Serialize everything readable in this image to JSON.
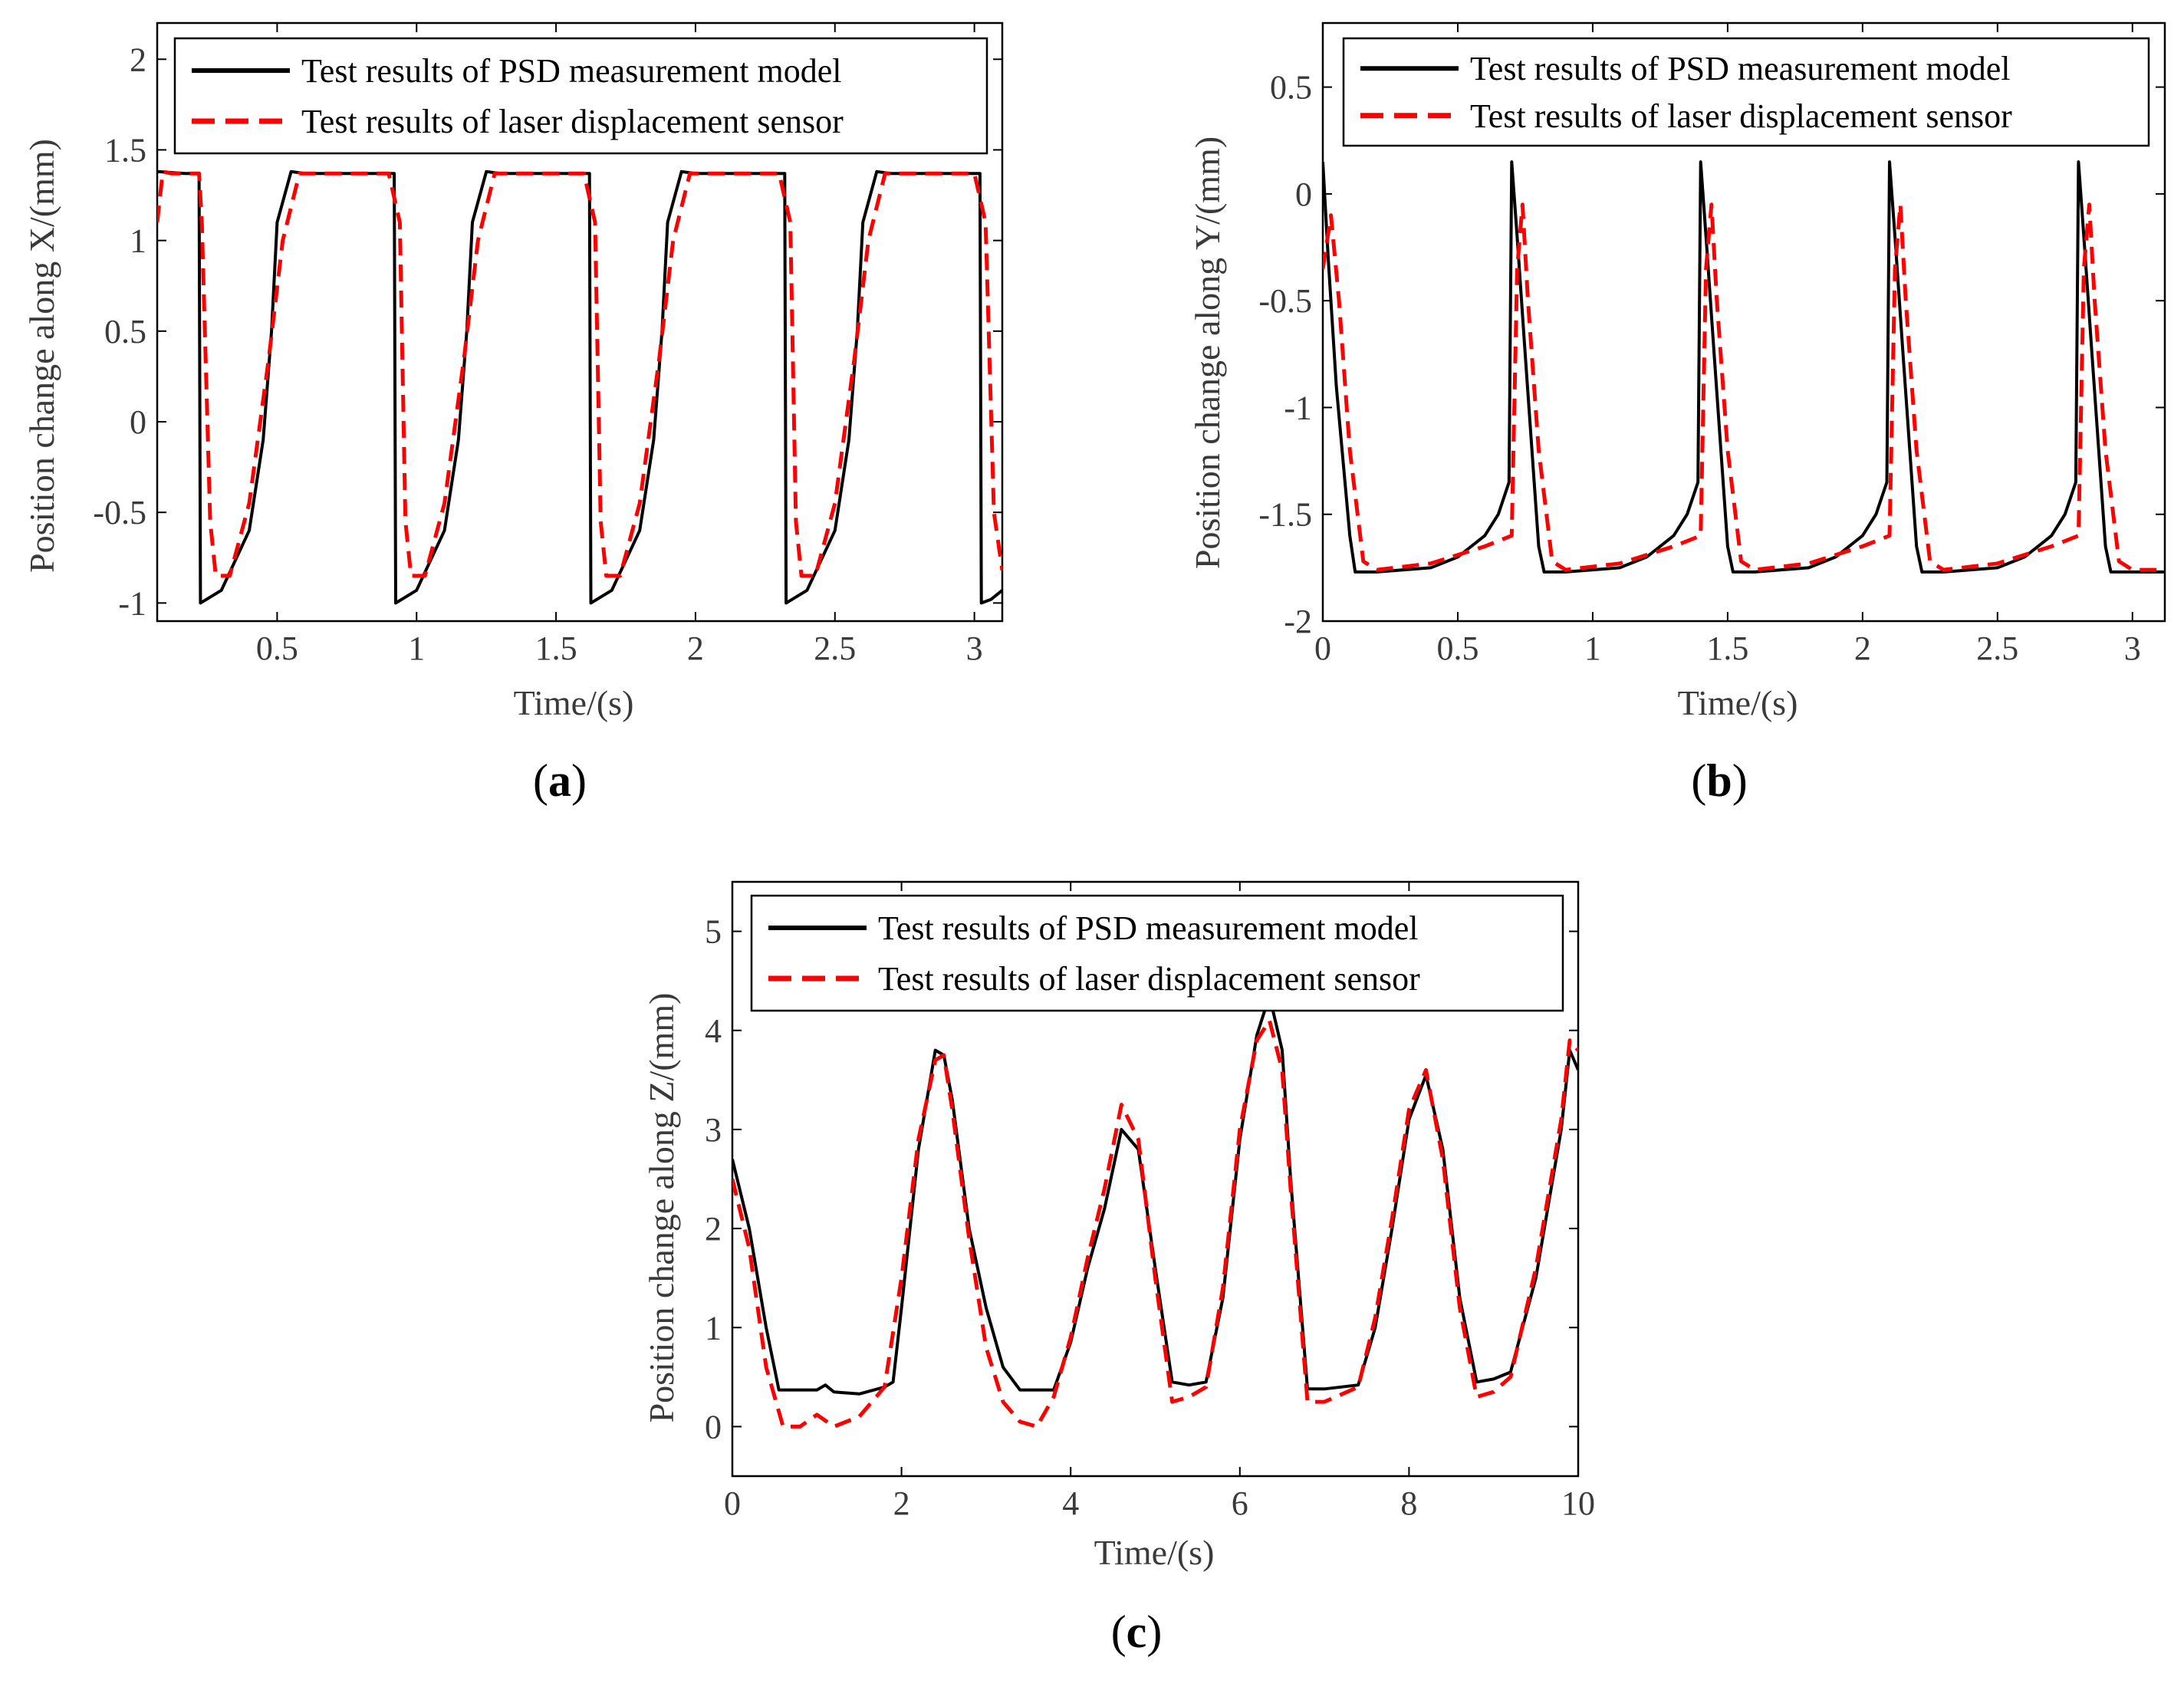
{
  "figure": {
    "captions": [
      "a",
      "b",
      "c"
    ]
  },
  "colors": {
    "psd": "#000000",
    "laser": "#ff0000",
    "axis": "#000000",
    "text": "#3a3a3a"
  },
  "chart_data": [
    {
      "id": "a",
      "type": "line",
      "caption": "a",
      "xlabel": "Time/(s)",
      "ylabel": "Position change along X/(mm)",
      "xlim": [
        0.07,
        3.1
      ],
      "ylim": [
        -1.1,
        2.2
      ],
      "xticks": [
        0.5,
        1,
        1.5,
        2,
        2.5,
        3
      ],
      "xtick_labels": [
        "0.5",
        "1",
        "1.5",
        "2",
        "2.5",
        "3"
      ],
      "yticks": [
        -1,
        -0.5,
        0,
        0.5,
        1,
        1.5,
        2
      ],
      "ytick_labels": [
        "-1",
        "-0.5",
        "0",
        "0.5",
        "1",
        "1.5",
        "2"
      ],
      "legend": [
        "Test results of PSD measurement model",
        "Test results of laser displacement sensor"
      ],
      "series": [
        {
          "name": "Test results of PSD measurement model",
          "x": [
            0.07,
            0.17,
            0.22,
            0.225,
            0.3,
            0.4,
            0.45,
            0.48,
            0.5,
            0.55,
            0.6,
            0.7,
            0.92,
            0.925,
            1.0,
            1.1,
            1.15,
            1.18,
            1.2,
            1.25,
            1.3,
            1.4,
            1.62,
            1.625,
            1.7,
            1.8,
            1.85,
            1.88,
            1.9,
            1.95,
            2.0,
            2.1,
            2.32,
            2.325,
            2.4,
            2.5,
            2.55,
            2.58,
            2.6,
            2.65,
            2.7,
            2.8,
            3.02,
            3.025,
            3.06,
            3.1
          ],
          "values": [
            1.38,
            1.37,
            1.37,
            -1.0,
            -0.93,
            -0.6,
            -0.1,
            0.5,
            1.1,
            1.38,
            1.37,
            1.37,
            1.37,
            -1.0,
            -0.93,
            -0.6,
            -0.1,
            0.5,
            1.1,
            1.38,
            1.37,
            1.37,
            1.37,
            -1.0,
            -0.93,
            -0.6,
            -0.1,
            0.5,
            1.1,
            1.38,
            1.37,
            1.37,
            1.37,
            -1.0,
            -0.93,
            -0.6,
            -0.1,
            0.5,
            1.1,
            1.38,
            1.37,
            1.37,
            1.37,
            -1.0,
            -0.98,
            -0.93
          ]
        },
        {
          "name": "Test results of laser displacement sensor",
          "x": [
            0.07,
            0.09,
            0.12,
            0.22,
            0.23,
            0.26,
            0.28,
            0.33,
            0.4,
            0.47,
            0.52,
            0.58,
            0.7,
            0.9,
            0.94,
            0.96,
            0.98,
            1.03,
            1.1,
            1.17,
            1.22,
            1.28,
            1.4,
            1.6,
            1.64,
            1.66,
            1.68,
            1.73,
            1.8,
            1.87,
            1.92,
            1.98,
            2.1,
            2.3,
            2.34,
            2.36,
            2.38,
            2.43,
            2.5,
            2.57,
            2.62,
            2.68,
            2.8,
            3.0,
            3.04,
            3.07,
            3.1
          ],
          "values": [
            1.1,
            1.38,
            1.37,
            1.37,
            1.1,
            -0.55,
            -0.85,
            -0.85,
            -0.45,
            0.35,
            1.0,
            1.37,
            1.37,
            1.37,
            1.1,
            -0.55,
            -0.85,
            -0.85,
            -0.45,
            0.35,
            1.0,
            1.37,
            1.37,
            1.37,
            1.1,
            -0.55,
            -0.85,
            -0.85,
            -0.45,
            0.35,
            1.0,
            1.37,
            1.37,
            1.37,
            1.1,
            -0.55,
            -0.85,
            -0.85,
            -0.45,
            0.35,
            1.0,
            1.37,
            1.37,
            1.37,
            1.1,
            -0.5,
            -0.82
          ]
        }
      ]
    },
    {
      "id": "b",
      "type": "line",
      "caption": "b",
      "xlabel": "Time/(s)",
      "ylabel": "Position change along Y/(mm)",
      "xlim": [
        0,
        3.12
      ],
      "ylim": [
        -2,
        0.8
      ],
      "xticks": [
        0,
        0.5,
        1,
        1.5,
        2,
        2.5,
        3
      ],
      "xtick_labels": [
        "0",
        "0.5",
        "1",
        "1.5",
        "2",
        "2.5",
        "3"
      ],
      "yticks": [
        -2,
        -1.5,
        -1,
        -0.5,
        0,
        0.5
      ],
      "ytick_labels": [
        "-2",
        "-1.5",
        "-1",
        "-0.5",
        "0",
        "0.5"
      ],
      "legend": [
        "Test results of PSD measurement model",
        "Test results of laser displacement sensor"
      ],
      "series": [
        {
          "name": "Test results of PSD measurement model",
          "x": [
            0,
            0.02,
            0.05,
            0.1,
            0.12,
            0.2,
            0.4,
            0.5,
            0.6,
            0.65,
            0.69,
            0.7,
            0.72,
            0.75,
            0.8,
            0.82,
            0.9,
            1.1,
            1.2,
            1.3,
            1.35,
            1.39,
            1.4,
            1.42,
            1.45,
            1.5,
            1.52,
            1.6,
            1.8,
            1.9,
            2.0,
            2.05,
            2.09,
            2.1,
            2.12,
            2.15,
            2.2,
            2.22,
            2.3,
            2.5,
            2.6,
            2.7,
            2.75,
            2.79,
            2.8,
            2.82,
            2.85,
            2.9,
            2.92,
            3.0,
            3.12
          ],
          "values": [
            0.15,
            -0.3,
            -0.9,
            -1.6,
            -1.77,
            -1.77,
            -1.75,
            -1.7,
            -1.6,
            -1.5,
            -1.35,
            0.15,
            -0.2,
            -0.75,
            -1.65,
            -1.77,
            -1.77,
            -1.75,
            -1.7,
            -1.6,
            -1.5,
            -1.35,
            0.15,
            -0.2,
            -0.75,
            -1.65,
            -1.77,
            -1.77,
            -1.75,
            -1.7,
            -1.6,
            -1.5,
            -1.35,
            0.15,
            -0.2,
            -0.75,
            -1.65,
            -1.77,
            -1.77,
            -1.75,
            -1.7,
            -1.6,
            -1.5,
            -1.35,
            0.15,
            -0.2,
            -0.75,
            -1.65,
            -1.77,
            -1.77,
            -1.77
          ]
        },
        {
          "name": "Test results of laser displacement sensor",
          "x": [
            0,
            0.03,
            0.06,
            0.1,
            0.15,
            0.2,
            0.4,
            0.6,
            0.7,
            0.72,
            0.74,
            0.76,
            0.8,
            0.85,
            0.9,
            1.1,
            1.3,
            1.4,
            1.42,
            1.44,
            1.46,
            1.5,
            1.55,
            1.6,
            1.8,
            2.0,
            2.1,
            2.12,
            2.14,
            2.16,
            2.2,
            2.25,
            2.3,
            2.5,
            2.7,
            2.8,
            2.82,
            2.84,
            2.86,
            2.9,
            2.95,
            3.0,
            3.12
          ],
          "values": [
            -0.35,
            -0.1,
            -0.5,
            -1.2,
            -1.72,
            -1.76,
            -1.73,
            -1.65,
            -1.6,
            -0.35,
            -0.05,
            -0.5,
            -1.2,
            -1.72,
            -1.76,
            -1.73,
            -1.65,
            -1.6,
            -0.35,
            -0.05,
            -0.5,
            -1.2,
            -1.72,
            -1.76,
            -1.73,
            -1.65,
            -1.6,
            -0.35,
            -0.05,
            -0.5,
            -1.2,
            -1.72,
            -1.76,
            -1.73,
            -1.65,
            -1.6,
            -0.35,
            -0.05,
            -0.5,
            -1.2,
            -1.72,
            -1.76,
            -1.76
          ]
        }
      ]
    },
    {
      "id": "c",
      "type": "line",
      "caption": "c",
      "xlabel": "Time/(s)",
      "ylabel": "Position change along Z/(mm)",
      "xlim": [
        0,
        10
      ],
      "ylim": [
        -0.5,
        5.5
      ],
      "xticks": [
        0,
        2,
        4,
        6,
        8,
        10
      ],
      "xtick_labels": [
        "0",
        "2",
        "4",
        "6",
        "8",
        "10"
      ],
      "yticks": [
        0,
        1,
        2,
        3,
        4,
        5
      ],
      "ytick_labels": [
        "0",
        "1",
        "2",
        "3",
        "4",
        "5"
      ],
      "legend": [
        "Test results of PSD measurement model",
        "Test results of laser displacement sensor"
      ],
      "series": [
        {
          "name": "Test results of PSD measurement model",
          "x": [
            0,
            0.2,
            0.4,
            0.55,
            1.0,
            1.1,
            1.2,
            1.5,
            1.8,
            1.9,
            2.0,
            2.2,
            2.4,
            2.5,
            2.6,
            2.8,
            3.0,
            3.2,
            3.4,
            3.6,
            3.8,
            4.0,
            4.2,
            4.4,
            4.6,
            4.8,
            5.0,
            5.2,
            5.4,
            5.6,
            5.8,
            6.0,
            6.2,
            6.35,
            6.5,
            6.6,
            6.8,
            7.0,
            7.4,
            7.6,
            7.8,
            8.0,
            8.2,
            8.4,
            8.6,
            8.8,
            9.0,
            9.2,
            9.5,
            9.8,
            9.9,
            10.0
          ],
          "values": [
            2.7,
            2.0,
            1.0,
            0.37,
            0.37,
            0.42,
            0.35,
            0.33,
            0.4,
            0.45,
            1.2,
            2.8,
            3.8,
            3.75,
            3.3,
            2.0,
            1.2,
            0.6,
            0.37,
            0.37,
            0.37,
            0.85,
            1.6,
            2.2,
            3.0,
            2.8,
            1.6,
            0.45,
            0.42,
            0.45,
            1.3,
            2.9,
            3.95,
            4.35,
            3.8,
            2.5,
            0.38,
            0.38,
            0.42,
            1.0,
            2.0,
            3.1,
            3.55,
            2.8,
            1.3,
            0.45,
            0.48,
            0.55,
            1.5,
            3.0,
            3.8,
            3.6
          ]
        },
        {
          "name": "Test results of laser displacement sensor",
          "x": [
            0,
            0.2,
            0.4,
            0.6,
            0.8,
            1.0,
            1.2,
            1.5,
            1.8,
            2.0,
            2.2,
            2.4,
            2.5,
            2.6,
            2.8,
            3.0,
            3.2,
            3.4,
            3.6,
            3.8,
            4.0,
            4.2,
            4.4,
            4.6,
            4.8,
            5.0,
            5.2,
            5.4,
            5.6,
            5.8,
            6.0,
            6.2,
            6.35,
            6.5,
            6.6,
            6.8,
            7.0,
            7.4,
            7.6,
            7.8,
            8.0,
            8.2,
            8.4,
            8.6,
            8.8,
            9.0,
            9.2,
            9.5,
            9.8,
            9.9,
            10.0
          ],
          "values": [
            2.5,
            1.8,
            0.6,
            0.0,
            0.0,
            0.12,
            0.0,
            0.1,
            0.4,
            1.5,
            2.9,
            3.7,
            3.75,
            3.2,
            1.9,
            0.8,
            0.25,
            0.05,
            0.0,
            0.3,
            0.9,
            1.7,
            2.4,
            3.25,
            2.9,
            1.5,
            0.25,
            0.3,
            0.4,
            1.4,
            3.0,
            3.9,
            4.1,
            3.6,
            2.4,
            0.25,
            0.25,
            0.4,
            1.1,
            2.1,
            3.2,
            3.6,
            2.7,
            1.2,
            0.3,
            0.35,
            0.5,
            1.6,
            3.1,
            3.9,
            3.8
          ]
        }
      ]
    }
  ]
}
